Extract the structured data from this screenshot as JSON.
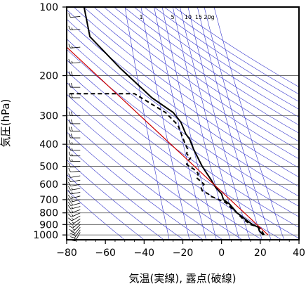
{
  "chart_data": {
    "type": "line",
    "title": "",
    "xlabel": "気温(実線), 露点(破線)",
    "ylabel": "気圧(hPa)",
    "x_axis": {
      "scale": "linear",
      "range": [
        -80,
        40
      ],
      "ticks": [
        "−80",
        "−60",
        "−40",
        "−20",
        "0",
        "20",
        "40"
      ]
    },
    "y_axis": {
      "scale": "log",
      "range": [
        1050,
        100
      ],
      "ticks": [
        "100",
        "200",
        "300",
        "400",
        "500",
        "600",
        "700",
        "800",
        "900",
        "1000"
      ]
    },
    "mixing_ratio_labels": [
      "1",
      "5",
      "10",
      "15",
      "20g"
    ],
    "grid": true,
    "legend": "none",
    "colors": {
      "temperature": "#000000",
      "dewpoint": "#000000",
      "reference": "#cc0000",
      "background_lines": "#3333cc",
      "frame": "#000000"
    },
    "series": [
      {
        "role": "temperature",
        "style": "solid",
        "points": [
          [
            21.5,
            1000
          ],
          [
            19.5,
            960
          ],
          [
            19.0,
            925
          ],
          [
            16.0,
            900
          ],
          [
            12.0,
            850
          ],
          [
            8.0,
            800
          ],
          [
            4.0,
            730
          ],
          [
            1.0,
            700
          ],
          [
            0.0,
            660
          ],
          [
            -3.0,
            620
          ],
          [
            -5.0,
            580
          ],
          [
            -10.0,
            500
          ],
          [
            -14.5,
            420
          ],
          [
            -16.5,
            380
          ],
          [
            -18.5,
            360
          ],
          [
            -21.0,
            320
          ],
          [
            -25.0,
            290
          ],
          [
            -36.0,
            250
          ],
          [
            -52.5,
            185
          ],
          [
            -68.0,
            135
          ],
          [
            -71.0,
            100
          ]
        ]
      },
      {
        "role": "dewpoint",
        "style": "dashed",
        "points": [
          [
            22.0,
            1000
          ],
          [
            20.5,
            950
          ],
          [
            19.5,
            925
          ],
          [
            15.0,
            900
          ],
          [
            11.0,
            850
          ],
          [
            8.0,
            800
          ],
          [
            5.0,
            760
          ],
          [
            2.0,
            720
          ],
          [
            -3.0,
            690
          ],
          [
            -6.0,
            675
          ],
          [
            -7.0,
            660
          ],
          [
            -10.0,
            640
          ],
          [
            -10.5,
            620
          ],
          [
            -9.0,
            600
          ],
          [
            -12.0,
            570
          ],
          [
            -13.0,
            560
          ],
          [
            -12.0,
            540
          ],
          [
            -13.0,
            525
          ],
          [
            -15.0,
            510
          ],
          [
            -16.0,
            505
          ],
          [
            -18.0,
            490
          ],
          [
            -17.5,
            475
          ],
          [
            -16.0,
            460
          ],
          [
            -18.0,
            440
          ],
          [
            -17.5,
            420
          ],
          [
            -19.0,
            395
          ],
          [
            -22.5,
            330
          ],
          [
            -29.0,
            290
          ],
          [
            -45.0,
            240
          ],
          [
            -80.0,
            240
          ]
        ]
      },
      {
        "role": "reference",
        "style": "solid",
        "points": [
          [
            24.0,
            1000
          ],
          [
            -80.0,
            150
          ]
        ]
      }
    ],
    "wind_barbs": [
      {
        "p": 975,
        "dir": 210,
        "kt": 15
      },
      {
        "p": 950,
        "dir": 215,
        "kt": 15
      },
      {
        "p": 925,
        "dir": 220,
        "kt": 20
      },
      {
        "p": 900,
        "dir": 225,
        "kt": 15
      },
      {
        "p": 875,
        "dir": 230,
        "kt": 15
      },
      {
        "p": 850,
        "dir": 235,
        "kt": 15
      },
      {
        "p": 825,
        "dir": 240,
        "kt": 15
      },
      {
        "p": 800,
        "dir": 245,
        "kt": 15
      },
      {
        "p": 775,
        "dir": 250,
        "kt": 15
      },
      {
        "p": 750,
        "dir": 255,
        "kt": 15
      },
      {
        "p": 725,
        "dir": 255,
        "kt": 15
      },
      {
        "p": 700,
        "dir": 255,
        "kt": 15
      },
      {
        "p": 675,
        "dir": 255,
        "kt": 15
      },
      {
        "p": 650,
        "dir": 260,
        "kt": 15
      },
      {
        "p": 625,
        "dir": 260,
        "kt": 15
      },
      {
        "p": 600,
        "dir": 260,
        "kt": 10
      },
      {
        "p": 575,
        "dir": 260,
        "kt": 10
      },
      {
        "p": 550,
        "dir": 260,
        "kt": 10
      },
      {
        "p": 525,
        "dir": 265,
        "kt": 10
      },
      {
        "p": 500,
        "dir": 265,
        "kt": 10
      },
      {
        "p": 475,
        "dir": 270,
        "kt": 15
      },
      {
        "p": 450,
        "dir": 270,
        "kt": 15
      },
      {
        "p": 425,
        "dir": 270,
        "kt": 15
      },
      {
        "p": 400,
        "dir": 270,
        "kt": 15
      },
      {
        "p": 375,
        "dir": 270,
        "kt": 20
      },
      {
        "p": 350,
        "dir": 270,
        "kt": 20
      },
      {
        "p": 325,
        "dir": 270,
        "kt": 20
      },
      {
        "p": 300,
        "dir": 270,
        "kt": 20
      },
      {
        "p": 250,
        "dir": 270,
        "kt": 20
      },
      {
        "p": 225,
        "dir": 270,
        "kt": 20
      },
      {
        "p": 200,
        "dir": 270,
        "kt": 20
      },
      {
        "p": 175,
        "dir": 265,
        "kt": 15
      },
      {
        "p": 150,
        "dir": 265,
        "kt": 15
      },
      {
        "p": 125,
        "dir": 265,
        "kt": 15
      },
      {
        "p": 110,
        "dir": 265,
        "kt": 10
      }
    ]
  }
}
